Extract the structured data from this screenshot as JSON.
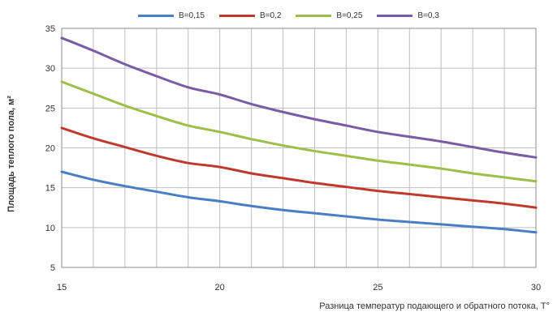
{
  "chart_data": {
    "type": "line",
    "xlabel": "Разница температур подающего и обратного потока, Т°",
    "ylabel": "Площадь теплого пола, м²",
    "xlim": [
      15,
      30
    ],
    "ylim": [
      5,
      35
    ],
    "x_ticks": [
      "15",
      "20",
      "25",
      "30"
    ],
    "y_ticks": [
      "5",
      "10",
      "15",
      "20",
      "25",
      "30",
      "35"
    ],
    "grid": true,
    "legend_position": "top",
    "x": [
      15,
      16,
      17,
      18,
      19,
      20,
      21,
      22,
      23,
      24,
      25,
      26,
      27,
      28,
      29,
      30
    ],
    "series": [
      {
        "name": "В=0,15",
        "color": "#4a7ec4",
        "values": [
          17.0,
          16.0,
          15.2,
          14.5,
          13.8,
          13.3,
          12.7,
          12.2,
          11.8,
          11.4,
          11.0,
          10.7,
          10.4,
          10.1,
          9.8,
          9.4
        ]
      },
      {
        "name": "В=0,2",
        "color": "#c0392f",
        "values": [
          22.5,
          21.2,
          20.1,
          19.0,
          18.1,
          17.6,
          16.8,
          16.2,
          15.6,
          15.1,
          14.6,
          14.2,
          13.8,
          13.4,
          13.0,
          12.5
        ]
      },
      {
        "name": "В=0,25",
        "color": "#9cbf4a",
        "values": [
          28.3,
          26.8,
          25.3,
          24.0,
          22.8,
          22.0,
          21.1,
          20.3,
          19.6,
          19.0,
          18.4,
          17.9,
          17.4,
          16.8,
          16.3,
          15.8
        ]
      },
      {
        "name": "В=0,3",
        "color": "#7a5ba6",
        "values": [
          33.8,
          32.2,
          30.5,
          29.0,
          27.6,
          26.7,
          25.5,
          24.5,
          23.6,
          22.8,
          22.0,
          21.4,
          20.8,
          20.1,
          19.4,
          18.8
        ]
      }
    ]
  }
}
